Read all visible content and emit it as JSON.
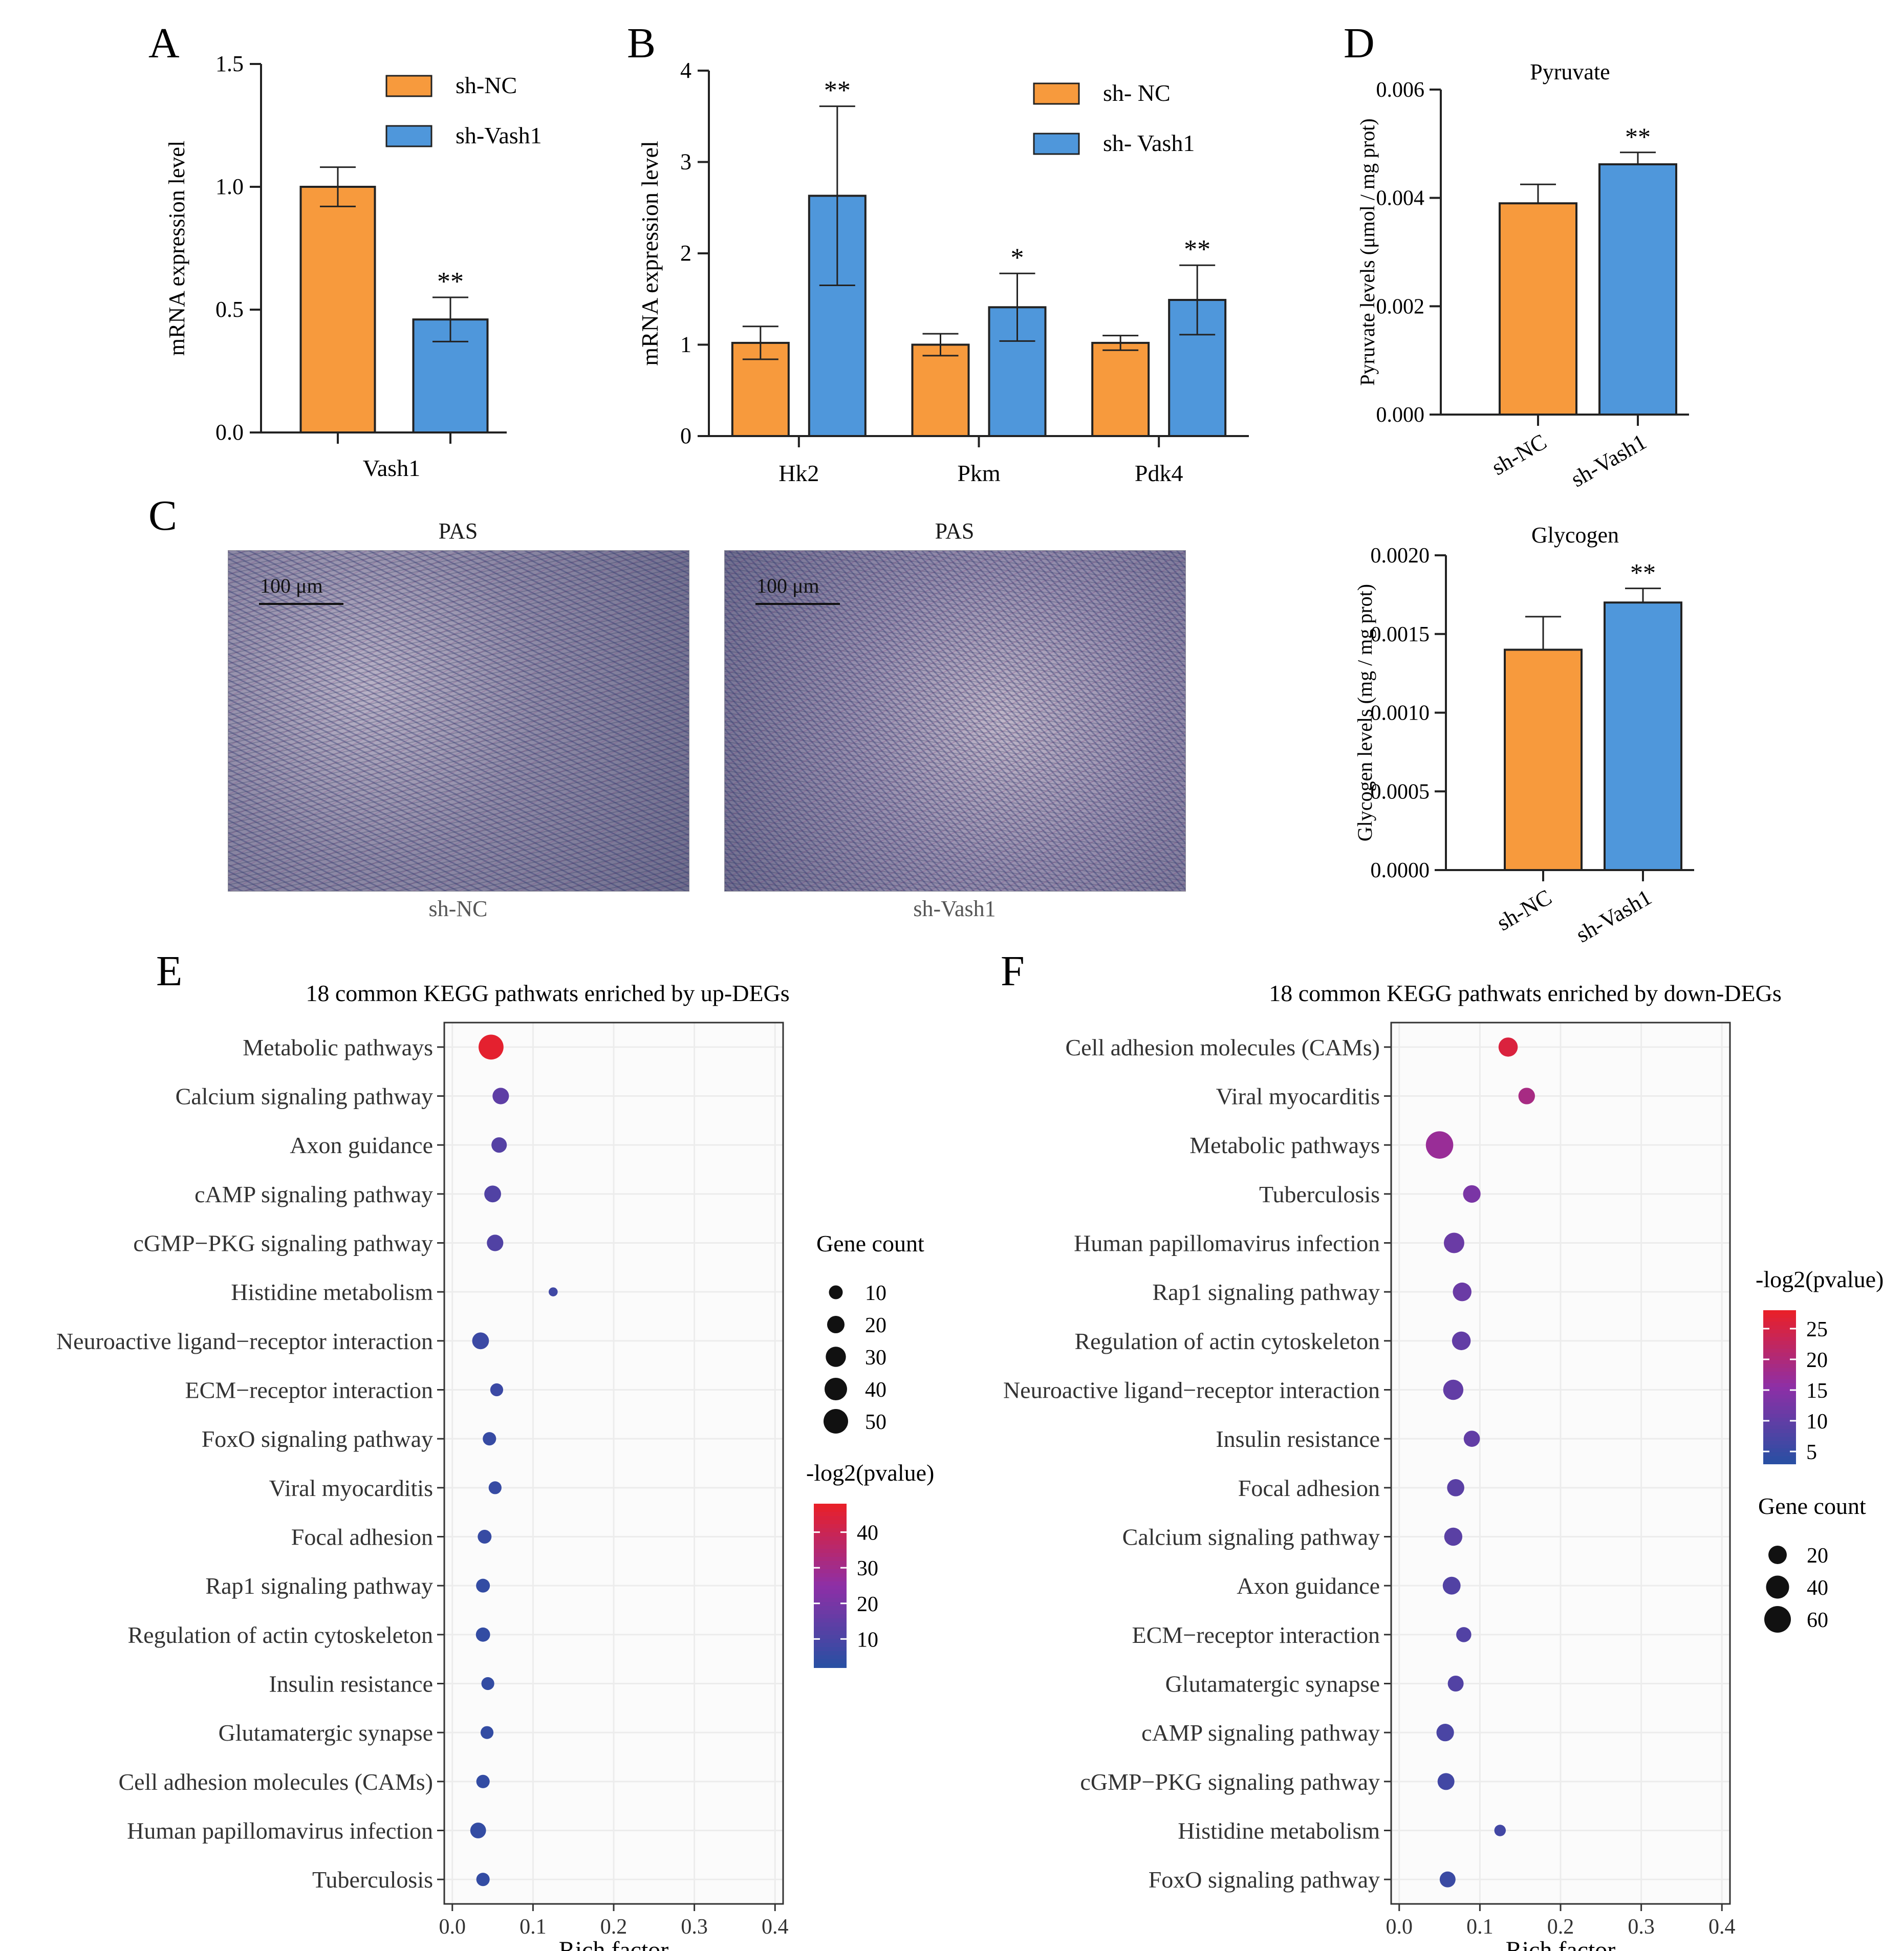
{
  "panels": {
    "A": "A",
    "B": "B",
    "C": "C",
    "D": "D",
    "E": "E",
    "F": "F"
  },
  "colors": {
    "sh_nc": "#f79a3d",
    "sh_vash1": "#4f97db",
    "pvalue_low": "#2a4fa3",
    "pvalue_mid": "#8e2fa6",
    "pvalue_high": "#e8202a"
  },
  "chart_data": [
    {
      "id": "A",
      "type": "bar",
      "categories": [
        "Vash1"
      ],
      "series": [
        {
          "name": "sh-NC",
          "values": [
            1.0
          ],
          "error": [
            0.08
          ],
          "significance": [
            ""
          ]
        },
        {
          "name": "sh-Vash1",
          "values": [
            0.46
          ],
          "error": [
            0.09
          ],
          "significance": [
            "**"
          ]
        }
      ],
      "ylabel": "mRNA expression level",
      "ylim": [
        0,
        1.5
      ],
      "yticks": [
        "0.0",
        "0.5",
        "1.0",
        "1.5"
      ],
      "legend": "top-right"
    },
    {
      "id": "B",
      "type": "bar",
      "categories": [
        "Hk2",
        "Pkm",
        "Pdk4"
      ],
      "series": [
        {
          "name": "sh- NC",
          "values": [
            1.02,
            1.0,
            1.02
          ],
          "error": [
            0.18,
            0.12,
            0.08
          ],
          "significance": [
            "",
            "",
            ""
          ]
        },
        {
          "name": "sh- Vash1",
          "values": [
            2.63,
            1.41,
            1.49
          ],
          "error": [
            0.98,
            0.37,
            0.38
          ],
          "significance": [
            "**",
            "*",
            "**"
          ]
        }
      ],
      "ylabel": "mRNA expression level",
      "ylim": [
        0,
        4
      ],
      "yticks": [
        "0",
        "1",
        "2",
        "3",
        "4"
      ],
      "legend": "top-right"
    },
    {
      "id": "D1",
      "type": "bar",
      "title": "Pyruvate",
      "categories": [
        "sh-NC",
        "sh-Vash1"
      ],
      "values": [
        0.0039,
        0.00462
      ],
      "error": [
        0.00035,
        0.00022
      ],
      "significance": [
        "",
        "**"
      ],
      "ylabel": "Pyruvate levels (μmol / mg prot)",
      "ylim": [
        0,
        0.006
      ],
      "yticks": [
        "0.000",
        "0.002",
        "0.004",
        "0.006"
      ]
    },
    {
      "id": "D2",
      "type": "bar",
      "title": "Glycogen",
      "categories": [
        "sh-NC",
        "sh-Vash1"
      ],
      "values": [
        0.0014,
        0.0017
      ],
      "error": [
        0.00021,
        9e-05
      ],
      "significance": [
        "",
        "**"
      ],
      "ylabel": "Glycogen levels (mg / mg prot)",
      "ylim": [
        0,
        0.002
      ],
      "yticks": [
        "0.0000",
        "0.0005",
        "0.0010",
        "0.0015",
        "0.0020"
      ]
    },
    {
      "id": "E",
      "type": "scatter",
      "title": "18 common KEGG pathwats enriched by up-DEGs",
      "xlabel": "Rich factor",
      "xlim": [
        -0.01,
        0.41
      ],
      "xticks": [
        "0.0",
        "0.1",
        "0.2",
        "0.3",
        "0.4"
      ],
      "categories": [
        "Metabolic pathways",
        "Calcium signaling pathway",
        "Axon guidance",
        "cAMP signaling pathway",
        "cGMP−PKG signaling pathway",
        "Histidine metabolism",
        "Neuroactive ligand−receptor interaction",
        "ECM−receptor interaction",
        "FoxO signaling pathway",
        "Viral myocarditis",
        "Focal adhesion",
        "Rap1 signaling pathway",
        "Regulation of actin cytoskeleton",
        "Insulin resistance",
        "Glutamatergic synapse",
        "Cell adhesion molecules (CAMs)",
        "Human papillomavirus infection",
        "Tuberculosis"
      ],
      "rich_factor": [
        0.048,
        0.06,
        0.058,
        0.05,
        0.053,
        0.125,
        0.035,
        0.055,
        0.046,
        0.053,
        0.04,
        0.038,
        0.038,
        0.044,
        0.043,
        0.038,
        0.032,
        0.038
      ],
      "gene_count": [
        52,
        17,
        14,
        18,
        17,
        2,
        18,
        8,
        9,
        8,
        10,
        10,
        11,
        8,
        8,
        9,
        15,
        9
      ],
      "neg_log2_pvalue": [
        47,
        14,
        12,
        11,
        11,
        7,
        6,
        6,
        5,
        5,
        5,
        4,
        4,
        4,
        4,
        4,
        4,
        4
      ],
      "size_legend_title": "Gene count",
      "size_legend": [
        10,
        20,
        30,
        40,
        50
      ],
      "color_legend_title": "-log2(pvalue)",
      "color_legend": [
        10,
        20,
        30,
        40
      ],
      "color_range": [
        2,
        48
      ]
    },
    {
      "id": "F",
      "type": "scatter",
      "title": "18 common KEGG pathwats enriched by down-DEGs",
      "xlabel": "Rich factor",
      "xlim": [
        -0.01,
        0.41
      ],
      "xticks": [
        "0.0",
        "0.1",
        "0.2",
        "0.3",
        "0.4"
      ],
      "categories": [
        "Cell adhesion molecules (CAMs)",
        "Viral myocarditis",
        "Metabolic pathways",
        "Tuberculosis",
        "Human papillomavirus infection",
        "Rap1 signaling pathway",
        "Regulation of actin cytoskeleton",
        "Neuroactive ligand−receptor interaction",
        "Insulin resistance",
        "Focal adhesion",
        "Calcium signaling pathway",
        "Axon guidance",
        "ECM−receptor interaction",
        "Glutamatergic synapse",
        "cAMP signaling pathway",
        "cGMP−PKG signaling pathway",
        "Histidine metabolism",
        "FoxO signaling pathway"
      ],
      "rich_factor": [
        0.135,
        0.158,
        0.05,
        0.09,
        0.068,
        0.078,
        0.077,
        0.067,
        0.09,
        0.07,
        0.067,
        0.065,
        0.08,
        0.07,
        0.057,
        0.058,
        0.125,
        0.06
      ],
      "gene_count": [
        23,
        14,
        65,
        17,
        28,
        21,
        21,
        27,
        13,
        16,
        19,
        18,
        10,
        12,
        17,
        15,
        3,
        12
      ],
      "neg_log2_pvalue": [
        26,
        19,
        17,
        13,
        11,
        11,
        10,
        10,
        10,
        9,
        9,
        8,
        8,
        8,
        7,
        6,
        6,
        5
      ],
      "size_legend_title": "Gene count",
      "size_legend": [
        20,
        40,
        60
      ],
      "color_legend_title": "-log2(pvalue)",
      "color_legend": [
        5,
        10,
        15,
        20,
        25
      ],
      "color_range": [
        3,
        28
      ]
    }
  ],
  "micrographs": [
    {
      "title": "PAS",
      "scale": "100 μm",
      "caption": "sh-NC"
    },
    {
      "title": "PAS",
      "scale": "100 μm",
      "caption": "sh-Vash1"
    }
  ]
}
